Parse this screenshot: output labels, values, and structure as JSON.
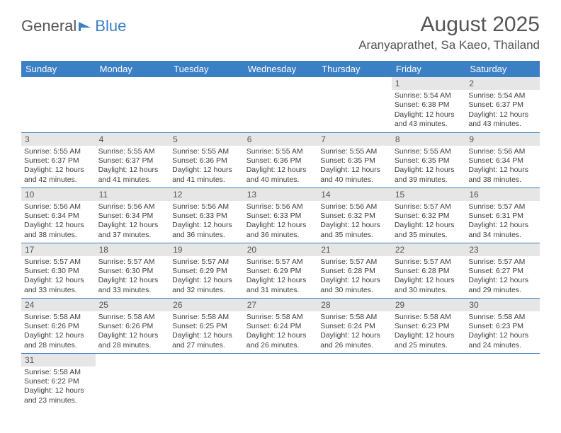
{
  "logo": {
    "text1": "General",
    "text2": "Blue"
  },
  "title": "August 2025",
  "location": "Aranyaprathet, Sa Kaeo, Thailand",
  "weekdays": [
    "Sunday",
    "Monday",
    "Tuesday",
    "Wednesday",
    "Thursday",
    "Friday",
    "Saturday"
  ],
  "colors": {
    "header_bg": "#3b7fc4",
    "header_text": "#ffffff",
    "daynum_bg": "#e6e6e6",
    "text": "#404040",
    "row_border": "#3b7fc4"
  },
  "weeks": [
    [
      null,
      null,
      null,
      null,
      null,
      {
        "n": "1",
        "sr": "Sunrise: 5:54 AM",
        "ss": "Sunset: 6:38 PM",
        "d1": "Daylight: 12 hours",
        "d2": "and 43 minutes."
      },
      {
        "n": "2",
        "sr": "Sunrise: 5:54 AM",
        "ss": "Sunset: 6:37 PM",
        "d1": "Daylight: 12 hours",
        "d2": "and 43 minutes."
      }
    ],
    [
      {
        "n": "3",
        "sr": "Sunrise: 5:55 AM",
        "ss": "Sunset: 6:37 PM",
        "d1": "Daylight: 12 hours",
        "d2": "and 42 minutes."
      },
      {
        "n": "4",
        "sr": "Sunrise: 5:55 AM",
        "ss": "Sunset: 6:37 PM",
        "d1": "Daylight: 12 hours",
        "d2": "and 41 minutes."
      },
      {
        "n": "5",
        "sr": "Sunrise: 5:55 AM",
        "ss": "Sunset: 6:36 PM",
        "d1": "Daylight: 12 hours",
        "d2": "and 41 minutes."
      },
      {
        "n": "6",
        "sr": "Sunrise: 5:55 AM",
        "ss": "Sunset: 6:36 PM",
        "d1": "Daylight: 12 hours",
        "d2": "and 40 minutes."
      },
      {
        "n": "7",
        "sr": "Sunrise: 5:55 AM",
        "ss": "Sunset: 6:35 PM",
        "d1": "Daylight: 12 hours",
        "d2": "and 40 minutes."
      },
      {
        "n": "8",
        "sr": "Sunrise: 5:55 AM",
        "ss": "Sunset: 6:35 PM",
        "d1": "Daylight: 12 hours",
        "d2": "and 39 minutes."
      },
      {
        "n": "9",
        "sr": "Sunrise: 5:56 AM",
        "ss": "Sunset: 6:34 PM",
        "d1": "Daylight: 12 hours",
        "d2": "and 38 minutes."
      }
    ],
    [
      {
        "n": "10",
        "sr": "Sunrise: 5:56 AM",
        "ss": "Sunset: 6:34 PM",
        "d1": "Daylight: 12 hours",
        "d2": "and 38 minutes."
      },
      {
        "n": "11",
        "sr": "Sunrise: 5:56 AM",
        "ss": "Sunset: 6:34 PM",
        "d1": "Daylight: 12 hours",
        "d2": "and 37 minutes."
      },
      {
        "n": "12",
        "sr": "Sunrise: 5:56 AM",
        "ss": "Sunset: 6:33 PM",
        "d1": "Daylight: 12 hours",
        "d2": "and 36 minutes."
      },
      {
        "n": "13",
        "sr": "Sunrise: 5:56 AM",
        "ss": "Sunset: 6:33 PM",
        "d1": "Daylight: 12 hours",
        "d2": "and 36 minutes."
      },
      {
        "n": "14",
        "sr": "Sunrise: 5:56 AM",
        "ss": "Sunset: 6:32 PM",
        "d1": "Daylight: 12 hours",
        "d2": "and 35 minutes."
      },
      {
        "n": "15",
        "sr": "Sunrise: 5:57 AM",
        "ss": "Sunset: 6:32 PM",
        "d1": "Daylight: 12 hours",
        "d2": "and 35 minutes."
      },
      {
        "n": "16",
        "sr": "Sunrise: 5:57 AM",
        "ss": "Sunset: 6:31 PM",
        "d1": "Daylight: 12 hours",
        "d2": "and 34 minutes."
      }
    ],
    [
      {
        "n": "17",
        "sr": "Sunrise: 5:57 AM",
        "ss": "Sunset: 6:30 PM",
        "d1": "Daylight: 12 hours",
        "d2": "and 33 minutes."
      },
      {
        "n": "18",
        "sr": "Sunrise: 5:57 AM",
        "ss": "Sunset: 6:30 PM",
        "d1": "Daylight: 12 hours",
        "d2": "and 33 minutes."
      },
      {
        "n": "19",
        "sr": "Sunrise: 5:57 AM",
        "ss": "Sunset: 6:29 PM",
        "d1": "Daylight: 12 hours",
        "d2": "and 32 minutes."
      },
      {
        "n": "20",
        "sr": "Sunrise: 5:57 AM",
        "ss": "Sunset: 6:29 PM",
        "d1": "Daylight: 12 hours",
        "d2": "and 31 minutes."
      },
      {
        "n": "21",
        "sr": "Sunrise: 5:57 AM",
        "ss": "Sunset: 6:28 PM",
        "d1": "Daylight: 12 hours",
        "d2": "and 30 minutes."
      },
      {
        "n": "22",
        "sr": "Sunrise: 5:57 AM",
        "ss": "Sunset: 6:28 PM",
        "d1": "Daylight: 12 hours",
        "d2": "and 30 minutes."
      },
      {
        "n": "23",
        "sr": "Sunrise: 5:57 AM",
        "ss": "Sunset: 6:27 PM",
        "d1": "Daylight: 12 hours",
        "d2": "and 29 minutes."
      }
    ],
    [
      {
        "n": "24",
        "sr": "Sunrise: 5:58 AM",
        "ss": "Sunset: 6:26 PM",
        "d1": "Daylight: 12 hours",
        "d2": "and 28 minutes."
      },
      {
        "n": "25",
        "sr": "Sunrise: 5:58 AM",
        "ss": "Sunset: 6:26 PM",
        "d1": "Daylight: 12 hours",
        "d2": "and 28 minutes."
      },
      {
        "n": "26",
        "sr": "Sunrise: 5:58 AM",
        "ss": "Sunset: 6:25 PM",
        "d1": "Daylight: 12 hours",
        "d2": "and 27 minutes."
      },
      {
        "n": "27",
        "sr": "Sunrise: 5:58 AM",
        "ss": "Sunset: 6:24 PM",
        "d1": "Daylight: 12 hours",
        "d2": "and 26 minutes."
      },
      {
        "n": "28",
        "sr": "Sunrise: 5:58 AM",
        "ss": "Sunset: 6:24 PM",
        "d1": "Daylight: 12 hours",
        "d2": "and 26 minutes."
      },
      {
        "n": "29",
        "sr": "Sunrise: 5:58 AM",
        "ss": "Sunset: 6:23 PM",
        "d1": "Daylight: 12 hours",
        "d2": "and 25 minutes."
      },
      {
        "n": "30",
        "sr": "Sunrise: 5:58 AM",
        "ss": "Sunset: 6:23 PM",
        "d1": "Daylight: 12 hours",
        "d2": "and 24 minutes."
      }
    ],
    [
      {
        "n": "31",
        "sr": "Sunrise: 5:58 AM",
        "ss": "Sunset: 6:22 PM",
        "d1": "Daylight: 12 hours",
        "d2": "and 23 minutes."
      },
      null,
      null,
      null,
      null,
      null,
      null
    ]
  ]
}
